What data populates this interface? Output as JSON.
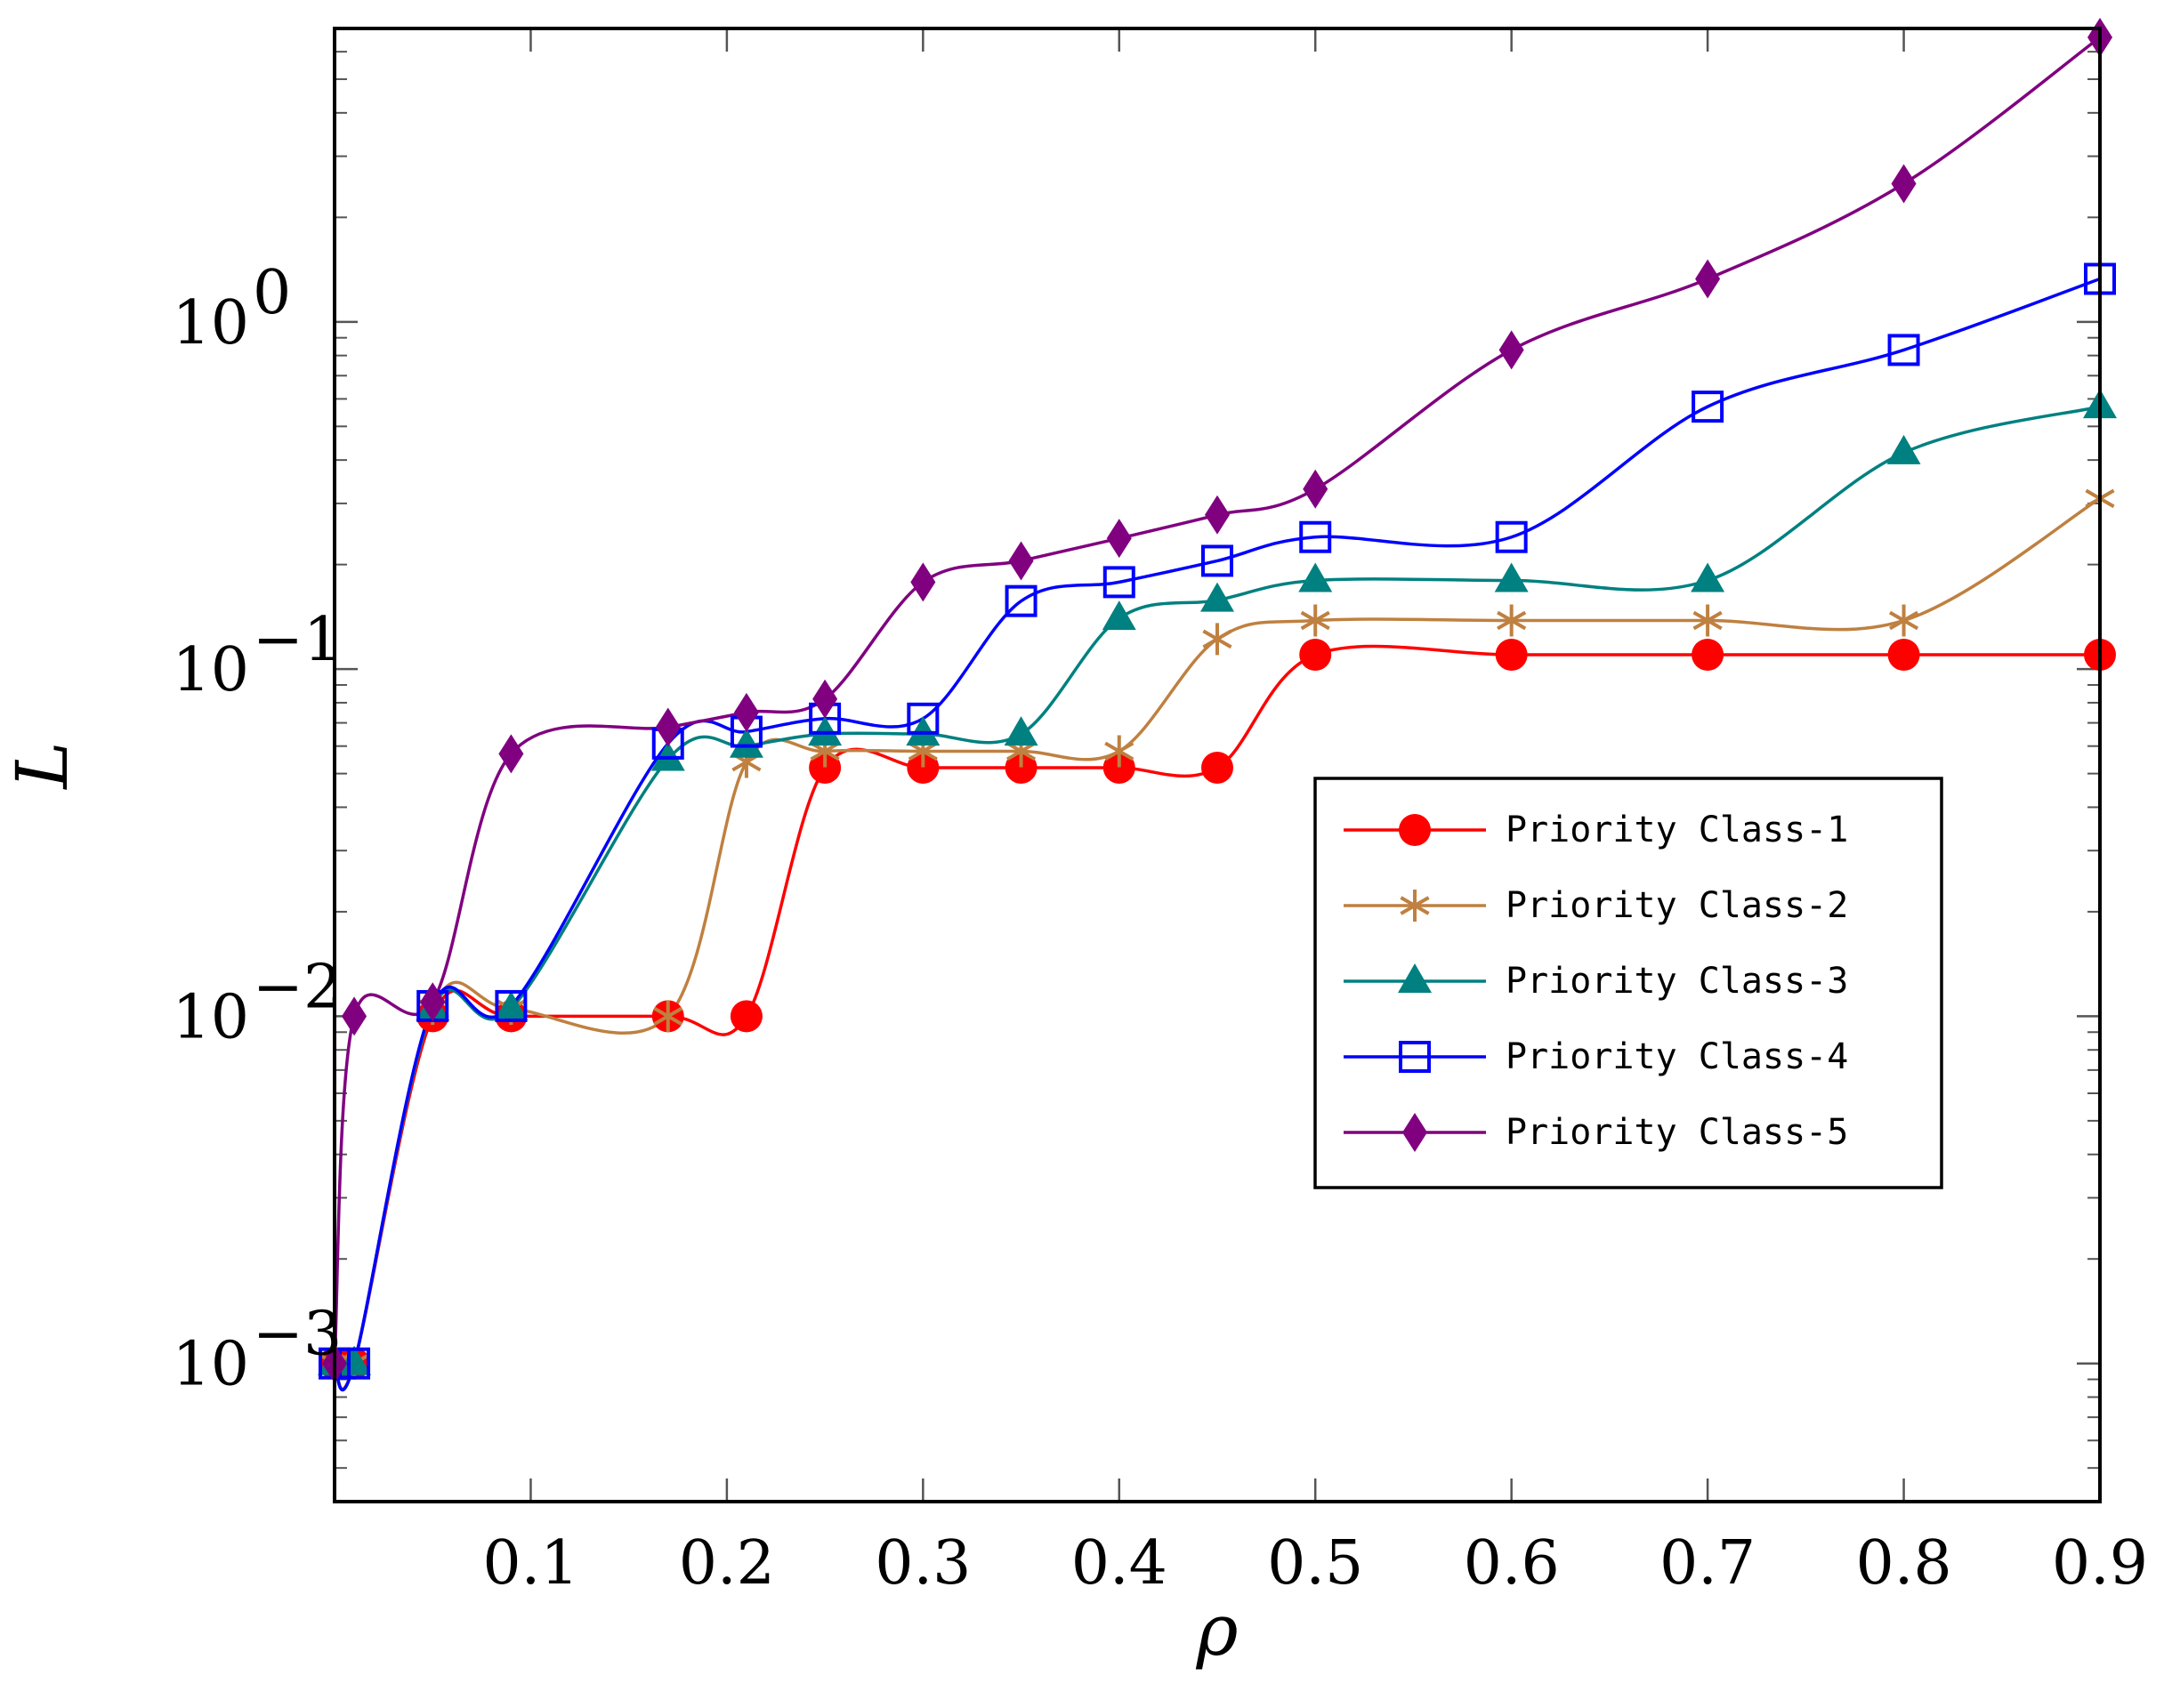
{
  "chart_data": {
    "type": "line",
    "xlabel": "ρ",
    "ylabel": "L",
    "xlim": [
      0.0,
      0.9
    ],
    "yscale": "log",
    "ylim": [
      0.0004,
      7
    ],
    "x_ticks": [
      0.1,
      0.2,
      0.3,
      0.4,
      0.5,
      0.6,
      0.7,
      0.8,
      0.9
    ],
    "x_tick_labels": [
      "0.1",
      "0.2",
      "0.3",
      "0.4",
      "0.5",
      "0.6",
      "0.7",
      "0.8",
      "0.9"
    ],
    "y_ticks": [
      {
        "value": 0.001,
        "base": "10",
        "exp": "−3"
      },
      {
        "value": 0.01,
        "base": "10",
        "exp": "−2"
      },
      {
        "value": 0.1,
        "base": "10",
        "exp": "−1"
      },
      {
        "value": 1,
        "base": "10",
        "exp": "0"
      }
    ],
    "grid": false,
    "legend_position": "center-right",
    "x": [
      0.0,
      0.01,
      0.05,
      0.09,
      0.17,
      0.21,
      0.25,
      0.3,
      0.35,
      0.4,
      0.45,
      0.5,
      0.6,
      0.7,
      0.8,
      0.9
    ],
    "series": [
      {
        "name": "Priority Class-1",
        "color": "#ff0000",
        "marker": "circle",
        "values": [
          0.001,
          0.001,
          0.01,
          0.01,
          0.01,
          0.01,
          0.052,
          0.052,
          0.052,
          0.052,
          0.052,
          0.11,
          0.11,
          0.11,
          0.11,
          0.11
        ]
      },
      {
        "name": "Priority Class-2",
        "color": "#bf8040",
        "marker": "star",
        "values": [
          0.001,
          0.001,
          0.0105,
          0.0105,
          0.01,
          0.054,
          0.058,
          0.058,
          0.058,
          0.058,
          0.122,
          0.138,
          0.138,
          0.138,
          0.138,
          0.31
        ]
      },
      {
        "name": "Priority Class-3",
        "color": "#008080",
        "marker": "triangle",
        "values": [
          0.001,
          0.001,
          0.0105,
          0.0105,
          0.055,
          0.06,
          0.065,
          0.065,
          0.065,
          0.14,
          0.158,
          0.18,
          0.18,
          0.18,
          0.42,
          0.57
        ]
      },
      {
        "name": "Priority Class-4",
        "color": "#0000ff",
        "marker": "square",
        "values": [
          0.001,
          0.001,
          0.0107,
          0.0107,
          0.061,
          0.066,
          0.072,
          0.072,
          0.157,
          0.178,
          0.205,
          0.24,
          0.24,
          0.57,
          0.83,
          1.33
        ]
      },
      {
        "name": "Priority Class-5",
        "color": "#800080",
        "marker": "diamond",
        "values": [
          0.001,
          0.01,
          0.011,
          0.057,
          0.068,
          0.075,
          0.082,
          0.178,
          0.205,
          0.238,
          0.278,
          0.33,
          0.83,
          1.33,
          2.5,
          6.6
        ]
      }
    ]
  }
}
